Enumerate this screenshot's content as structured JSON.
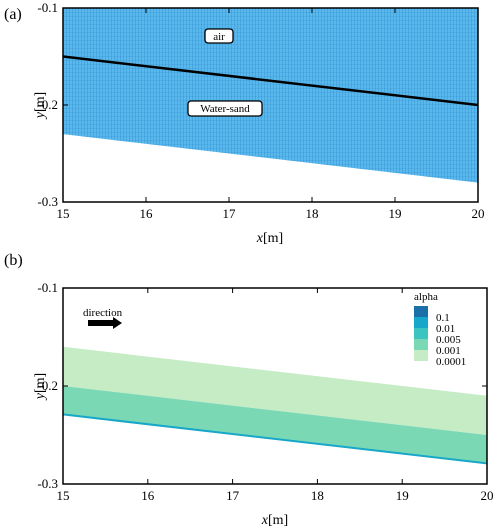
{
  "chart_data": [
    {
      "panel_label": "(a)",
      "type": "area",
      "xlabel_var": "x",
      "xlabel_unit": "[m]",
      "ylabel_var": "y",
      "ylabel_unit": "[m]",
      "xlim": [
        15,
        20
      ],
      "ylim": [
        -0.3,
        -0.1
      ],
      "xticks": [
        15,
        16,
        17,
        18,
        19,
        20
      ],
      "yticks": [
        -0.1,
        -0.2,
        -0.3
      ],
      "ytick_labels": [
        "-0.1",
        "-0.2",
        "-0.3"
      ],
      "mesh_color": "#3fa9e6",
      "mesh_top_y": -0.1,
      "mesh_bottom": {
        "x": [
          15,
          20
        ],
        "y": [
          -0.23,
          -0.28
        ]
      },
      "interface": {
        "x": [
          15,
          20
        ],
        "y": [
          -0.15,
          -0.2
        ],
        "color": "#000000"
      },
      "annotations": [
        {
          "text": "air",
          "x": 16.9,
          "y": -0.122
        },
        {
          "text": "Water-sand",
          "x": 16.9,
          "y": -0.182
        }
      ]
    },
    {
      "panel_label": "(b)",
      "type": "area",
      "xlabel_var": "x",
      "xlabel_unit": "[m]",
      "ylabel_var": "y",
      "ylabel_unit": "[m]",
      "xlim": [
        15,
        20
      ],
      "ylim": [
        -0.3,
        -0.1
      ],
      "xticks": [
        15,
        16,
        17,
        18,
        19,
        20
      ],
      "yticks": [
        -0.1,
        -0.2,
        -0.3
      ],
      "ytick_labels": [
        "-0.1",
        "-0.2",
        "-0.3"
      ],
      "direction_label": "direction",
      "legend": {
        "title": "alpha",
        "placement": "top-right",
        "levels": [
          {
            "label": "0.1",
            "color": "#1d6fa8"
          },
          {
            "label": "0.01",
            "color": "#17a7c8"
          },
          {
            "label": "0.005",
            "color": "#3cc4c0"
          },
          {
            "label": "0.001",
            "color": "#7bd8b5"
          },
          {
            "label": "0.0001",
            "color": "#c5ecc4"
          }
        ]
      },
      "bands": [
        {
          "level": "0.0001",
          "color": "#c5ecc4",
          "x": [
            15,
            20
          ],
          "y_top": [
            -0.16,
            -0.21
          ],
          "y_bottom": [
            -0.2,
            -0.25
          ]
        },
        {
          "level": "0.001",
          "color": "#7bd8b5",
          "x": [
            15,
            20
          ],
          "y_top": [
            -0.2,
            -0.25
          ],
          "y_bottom": [
            -0.229,
            -0.279
          ]
        }
      ],
      "edge_line": {
        "x": [
          15,
          20
        ],
        "y": [
          -0.229,
          -0.279
        ],
        "color": "#17a7c8"
      }
    }
  ]
}
